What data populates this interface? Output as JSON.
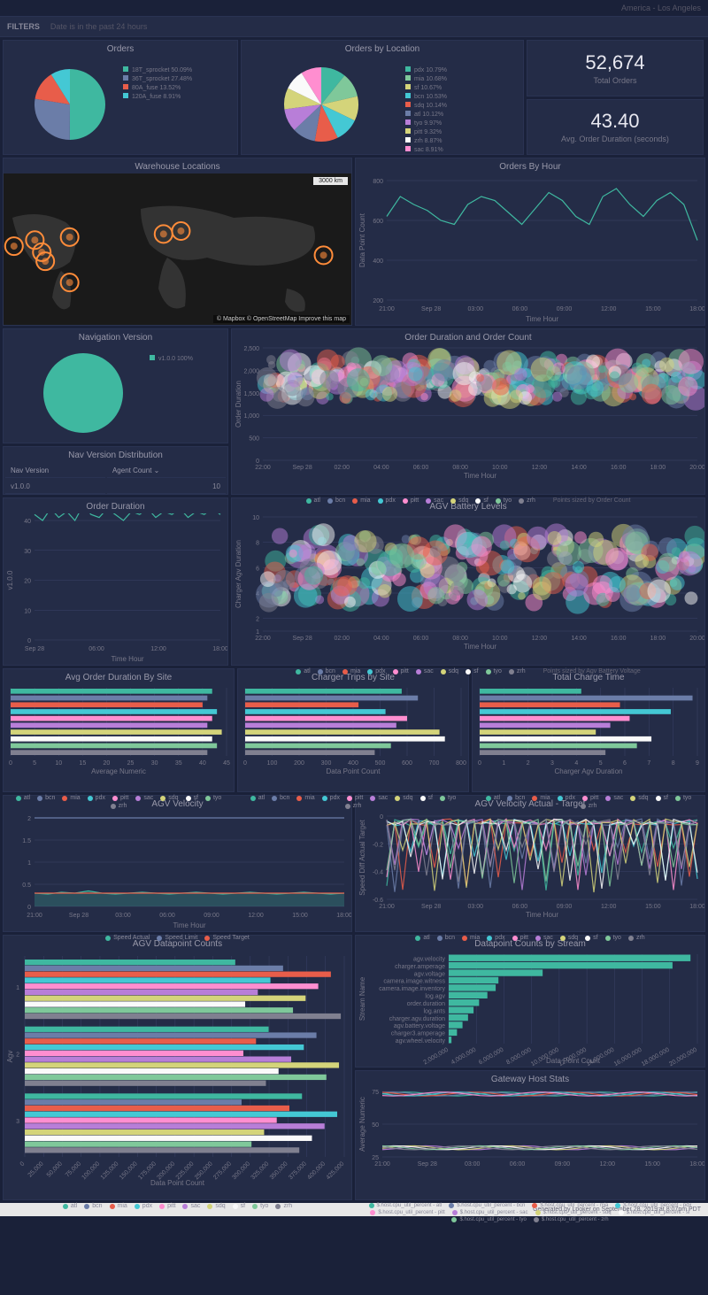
{
  "timezone": "America - Los Angeles",
  "filters": {
    "label": "FILTERS",
    "text": "Date is in the past 24 hours"
  },
  "palette": {
    "bg": "#1a2139",
    "panel": "#242c47",
    "border": "#2a3352",
    "text": "#aab",
    "text_dim": "#778",
    "grid": "#3a4268"
  },
  "sites": [
    "atl",
    "bcn",
    "mia",
    "pdx",
    "pitt",
    "sac",
    "sdq",
    "sf",
    "tyo",
    "zrh"
  ],
  "site_colors": {
    "atl": "#3fb8a0",
    "bcn": "#6b7da8",
    "mia": "#e85d4a",
    "pdx": "#44c8d4",
    "pitt": "#ff8ed0",
    "sac": "#b87ed8",
    "sdq": "#d4d47a",
    "sf": "#fafafa",
    "tyo": "#7fc89a",
    "zrh": "#808090"
  },
  "orders_pie": {
    "title": "Orders",
    "slices": [
      {
        "label": "18T_sprocket",
        "pct": 50.09,
        "color": "#3fb8a0"
      },
      {
        "label": "36T_sprocket",
        "pct": 27.48,
        "color": "#6b7da8"
      },
      {
        "label": "80A_fuse",
        "pct": 13.52,
        "color": "#e85d4a"
      },
      {
        "label": "120A_fuse",
        "pct": 8.91,
        "color": "#44c8d4"
      }
    ]
  },
  "orders_loc_pie": {
    "title": "Orders by Location",
    "slices": [
      {
        "label": "pdx",
        "pct": 10.79,
        "color": "#3fb8a0"
      },
      {
        "label": "mia",
        "pct": 10.68,
        "color": "#7fc89a"
      },
      {
        "label": "sf",
        "pct": 10.67,
        "color": "#d4d47a"
      },
      {
        "label": "bcn",
        "pct": 10.53,
        "color": "#44c8d4"
      },
      {
        "label": "sdq",
        "pct": 10.14,
        "color": "#e85d4a"
      },
      {
        "label": "atl",
        "pct": 10.12,
        "color": "#6b7da8"
      },
      {
        "label": "tyo",
        "pct": 9.97,
        "color": "#b87ed8"
      },
      {
        "label": "pitt",
        "pct": 9.32,
        "color": "#d4d47a"
      },
      {
        "label": "zrh",
        "pct": 8.87,
        "color": "#fafafa"
      },
      {
        "label": "sac",
        "pct": 8.91,
        "color": "#ff8ed0"
      }
    ]
  },
  "kpi_total": {
    "value": "52,674",
    "label": "Total Orders"
  },
  "kpi_avg": {
    "value": "43.40",
    "label": "Avg. Order Duration (seconds)"
  },
  "warehouse": {
    "title": "Warehouse Locations",
    "scale": "3000 km",
    "attr": "© Mapbox  © OpenStreetMap  Improve this map",
    "points": [
      {
        "x": 0.03,
        "y": 0.48
      },
      {
        "x": 0.09,
        "y": 0.44
      },
      {
        "x": 0.11,
        "y": 0.52
      },
      {
        "x": 0.12,
        "y": 0.58
      },
      {
        "x": 0.19,
        "y": 0.42
      },
      {
        "x": 0.19,
        "y": 0.72
      },
      {
        "x": 0.46,
        "y": 0.4
      },
      {
        "x": 0.51,
        "y": 0.38
      },
      {
        "x": 0.92,
        "y": 0.54
      }
    ]
  },
  "orders_hour": {
    "title": "Orders By Hour",
    "ylabel": "Data Point Count",
    "xlabel": "Time Hour",
    "xticks": [
      "21:00",
      "Sep 28",
      "03:00",
      "06:00",
      "09:00",
      "12:00",
      "15:00",
      "18:00"
    ],
    "ylim": [
      200,
      800
    ],
    "yticks": [
      200,
      400,
      600,
      800
    ],
    "color": "#3fb8a0",
    "values": [
      620,
      720,
      680,
      650,
      600,
      580,
      680,
      720,
      700,
      640,
      580,
      660,
      740,
      700,
      620,
      580,
      720,
      760,
      680,
      620,
      700,
      740,
      680,
      500
    ]
  },
  "nav_version": {
    "title": "Navigation Version",
    "slices": [
      {
        "label": "v1.0.0",
        "pct": 100.0,
        "color": "#3fb8a0"
      }
    ]
  },
  "nav_dist": {
    "title": "Nav Version Distribution",
    "columns": [
      "Nav Version",
      "Agent Count"
    ],
    "rows": [
      [
        "v1.0.0",
        "10"
      ]
    ]
  },
  "order_dur_count": {
    "title": "Order Duration and Order Count",
    "ylabel": "Order Duration",
    "xlabel": "Time Hour",
    "xticks": [
      "22:00",
      "Sep 28",
      "02:00",
      "04:00",
      "06:00",
      "08:00",
      "10:00",
      "12:00",
      "14:00",
      "16:00",
      "18:00",
      "20:00"
    ],
    "ylim": [
      0,
      2500
    ],
    "yticks": [
      0,
      500,
      1000,
      1500,
      2000,
      2500
    ],
    "size_note": "Points sized by Order Count"
  },
  "order_duration": {
    "title": "Order Duration",
    "ylabel": "v1.0.0",
    "xlabel": "Time Hour",
    "xticks": [
      "Sep 28",
      "06:00",
      "12:00",
      "18:00"
    ],
    "ylim": [
      0,
      40
    ],
    "yticks": [
      0,
      10,
      20,
      30,
      40
    ],
    "color": "#3fb8a0",
    "values": [
      42,
      40,
      44,
      41,
      43,
      40,
      45,
      42,
      41,
      44,
      42,
      40,
      43,
      42,
      44,
      41,
      43,
      42,
      44,
      41,
      43,
      42,
      44,
      42
    ]
  },
  "agv_battery": {
    "title": "AGV Battery Levels",
    "ylabel": "Charger Agv Duration",
    "xlabel": "Time Hour",
    "xticks": [
      "22:00",
      "Sep 28",
      "02:00",
      "04:00",
      "06:00",
      "08:00",
      "10:00",
      "12:00",
      "14:00",
      "16:00",
      "18:00",
      "20:00"
    ],
    "ylim": [
      1,
      10
    ],
    "yticks": [
      1,
      2,
      4,
      6,
      8,
      10
    ],
    "size_note": "Points sized by Agv Battery Voltage"
  },
  "avg_dur_site": {
    "title": "Avg Order Duration By Site",
    "xlabel": "Average Numeric",
    "xlim": [
      0,
      45
    ],
    "xticks": [
      0,
      5,
      10,
      15,
      20,
      25,
      30,
      35,
      40,
      45
    ],
    "values": {
      "atl": 42,
      "bcn": 41,
      "mia": 40,
      "pdx": 43,
      "pitt": 42,
      "sac": 41,
      "sdq": 44,
      "sf": 42,
      "tyo": 43,
      "zrh": 41
    }
  },
  "charger_trips": {
    "title": "Charger Trips by Site",
    "xlabel": "Data Point Count",
    "xlim": [
      0,
      800
    ],
    "xticks": [
      0,
      100,
      200,
      300,
      400,
      500,
      600,
      700,
      800
    ],
    "values": {
      "atl": 580,
      "bcn": 640,
      "mia": 420,
      "pdx": 520,
      "pitt": 600,
      "sac": 560,
      "sdq": 720,
      "sf": 740,
      "tyo": 540,
      "zrh": 480
    }
  },
  "total_charge": {
    "title": "Total Charge Time",
    "xlabel": "Charger Agv Duration",
    "xlim": [
      0,
      9
    ],
    "xticks": [
      0,
      1,
      2,
      3,
      4,
      5,
      6,
      7,
      8,
      9
    ],
    "values": {
      "atl": 4.2,
      "bcn": 8.8,
      "mia": 5.8,
      "pdx": 7.9,
      "pitt": 6.2,
      "sac": 5.4,
      "sdq": 4.8,
      "sf": 7.1,
      "tyo": 6.5,
      "zrh": 5.2
    }
  },
  "agv_velocity": {
    "title": "AGV Velocity",
    "xlabel": "Time Hour",
    "xticks": [
      "21:00",
      "Sep 28",
      "03:00",
      "06:00",
      "09:00",
      "12:00",
      "15:00",
      "18:00"
    ],
    "ylim": [
      0,
      2
    ],
    "yticks": [
      0,
      0.5,
      1,
      1.5,
      2
    ],
    "series": [
      {
        "name": "Speed Actual",
        "color": "#3fb8a0",
        "values": [
          0.3,
          0.28,
          0.32,
          0.3,
          0.35,
          0.3,
          0.28,
          0.3,
          0.32,
          0.3,
          0.28,
          0.3,
          0.32,
          0.3,
          0.28,
          0.3,
          0.32,
          0.3,
          0.28,
          0.3,
          0.32,
          0.3,
          0.28,
          0.3
        ]
      },
      {
        "name": "Speed Limit",
        "color": "#6b7da8",
        "values": [
          2,
          2,
          2,
          2,
          2,
          2,
          2,
          2,
          2,
          2,
          2,
          2,
          2,
          2,
          2,
          2,
          2,
          2,
          2,
          2,
          2,
          2,
          2,
          2
        ]
      },
      {
        "name": "Speed Target",
        "color": "#e85d4a",
        "values": [
          0.3,
          0.3,
          0.3,
          0.3,
          0.3,
          0.3,
          0.3,
          0.3,
          0.3,
          0.3,
          0.3,
          0.3,
          0.3,
          0.3,
          0.3,
          0.3,
          0.3,
          0.3,
          0.3,
          0.3,
          0.3,
          0.3,
          0.3,
          0.3
        ]
      }
    ]
  },
  "agv_vel_diff": {
    "title": "AGV Velocity Actual - Target",
    "ylabel": "Speed Diff Actual Target",
    "xlabel": "Time Hour",
    "xticks": [
      "21:00",
      "Sep 28",
      "03:00",
      "06:00",
      "09:00",
      "12:00",
      "15:00",
      "18:00"
    ],
    "ylim": [
      -0.6,
      0
    ],
    "yticks": [
      -0.6,
      -0.4,
      -0.2,
      0
    ]
  },
  "agv_datapoints": {
    "title": "AGV Datapoint Counts",
    "ylabel": "Agv",
    "xlabel": "Data Point Count",
    "xlim": [
      0,
      425000
    ],
    "xticks": [
      0,
      25000,
      50000,
      75000,
      100000,
      125000,
      150000,
      175000,
      200000,
      225000,
      250000,
      275000,
      300000,
      325000,
      350000,
      375000,
      400000,
      425000
    ],
    "groups": [
      "1",
      "2",
      "3"
    ]
  },
  "datapoints_stream": {
    "title": "Datapoint Counts by Stream",
    "ylabel": "Stream Name",
    "xlabel": "Data Point Count",
    "xlim": [
      2000000,
      20000000
    ],
    "xticks": [
      2000000,
      4000000,
      6000000,
      8000000,
      10000000,
      12000000,
      14000000,
      16000000,
      18000000,
      20000000
    ],
    "streams": [
      {
        "name": "agv.velocity",
        "val": 19500000
      },
      {
        "name": "charger.amperage",
        "val": 18200000
      },
      {
        "name": "agv.voltage",
        "val": 8800000
      },
      {
        "name": "camera.image.witness",
        "val": 5600000
      },
      {
        "name": "camera.image.inventory",
        "val": 5400000
      },
      {
        "name": "log.agv",
        "val": 4800000
      },
      {
        "name": "order.duration",
        "val": 4200000
      },
      {
        "name": "log.ants",
        "val": 3800000
      },
      {
        "name": "charger.agv.duration",
        "val": 3400000
      },
      {
        "name": "agv.battery.voltage",
        "val": 3000000
      },
      {
        "name": "charger3.amperage",
        "val": 2600000
      },
      {
        "name": "agv.wheel.velocity",
        "val": 2200000
      }
    ],
    "color": "#3fb8a0"
  },
  "gateway_stats": {
    "title": "Gateway Host Stats",
    "ylabel": "Average Numeric",
    "xlabel": "Time Hour",
    "xticks": [
      "21:00",
      "Sep 28",
      "03:00",
      "06:00",
      "09:00",
      "12:00",
      "15:00",
      "18:00"
    ],
    "ylim": [
      25,
      75
    ],
    "yticks": [
      25,
      50,
      75
    ],
    "legend_prefix": "$.host.cpu_util_percent"
  },
  "footer": "Generated by Looker on September 28, 2019 at 8:07pm PDT"
}
